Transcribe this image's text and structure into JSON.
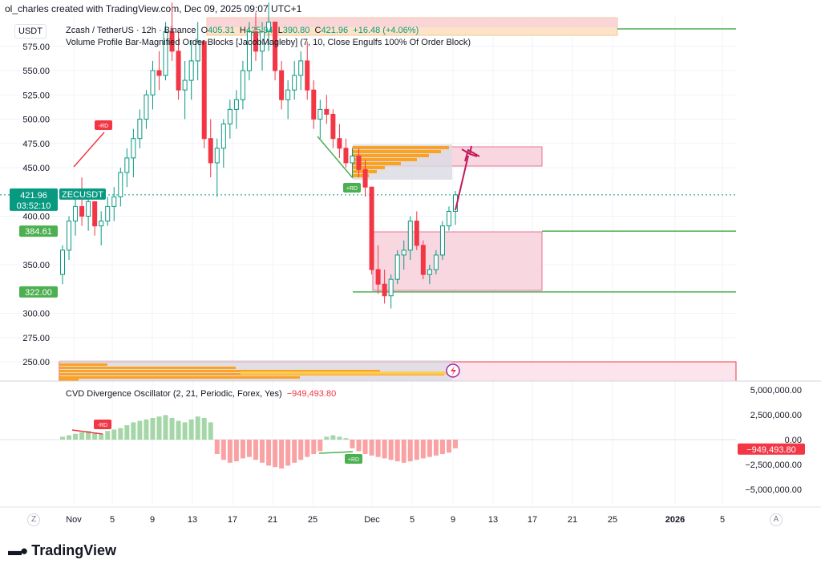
{
  "header": {
    "text": "ol_charles created with TradingView.com, Dec 09, 2025 09:07 UTC+1"
  },
  "legend_main": {
    "symbol": "Zcash / TetherUS · 12h · Binance",
    "o_label": "O",
    "o_value": "405.31",
    "h_label": "H",
    "h_value": "425.94",
    "l_label": "L",
    "l_value": "390.80",
    "c_label": "C",
    "c_value": "421.96",
    "change": "+16.48 (+4.06%)"
  },
  "legend_indicator": {
    "text": "Volume Profile Bar-Magnified Order Blocks [JacobMagleby] (7, 10, Close Engulfs 100% Of Order Block)"
  },
  "legend_oscillator": {
    "name": "CVD Divergence Oscillator (2, 21, Periodic, Forex, Yes)",
    "value": "−949,493.80"
  },
  "price_currency": "USDT",
  "footer": {
    "logo": "TradingView",
    "left_button": "Z",
    "right_button": "A"
  },
  "colors": {
    "up": "#089981",
    "down": "#f23645",
    "green_line": "#4caf50",
    "zone_fill": "#f8d7e0",
    "zone_border": "#e57399",
    "orange": "#ff9800",
    "arrow": "#c2185b"
  },
  "chart_data": {
    "type": "candlestick",
    "symbol": "ZECUSDT",
    "interval": "12h",
    "price_axis": {
      "ticks": [
        "575.00",
        "550.00",
        "525.00",
        "500.00",
        "475.00",
        "450.00",
        "400.00",
        "350.00",
        "300.00",
        "275.00",
        "250.00"
      ],
      "tick_values": [
        575,
        550,
        525,
        500,
        475,
        450,
        400,
        350,
        300,
        275,
        250
      ]
    },
    "price_labels": [
      {
        "text": "421.96",
        "sub": "03:52:10",
        "value": 421.96,
        "color": "#089981"
      },
      {
        "text": "384.61",
        "value": 384.61,
        "color": "#4caf50"
      },
      {
        "text": "322.00",
        "value": 322.0,
        "color": "#4caf50"
      }
    ],
    "symbol_label": "ZECUSDT",
    "time_axis": [
      "Nov",
      "5",
      "9",
      "13",
      "17",
      "21",
      "25",
      "Dec",
      "5",
      "9",
      "13",
      "17",
      "21",
      "25",
      "2026",
      "5"
    ],
    "horizontal_levels": [
      587,
      384.61,
      322.0
    ],
    "markers": [
      {
        "text": "-RD",
        "color": "#f23645"
      },
      {
        "text": "+RD",
        "color": "#4caf50"
      }
    ],
    "oscillator": {
      "ticks": [
        "5,000,000.00",
        "2,500,000.00",
        "0.00",
        "−2,500,000.00",
        "−5,000,000.00"
      ],
      "tick_values": [
        5000000,
        2500000,
        0,
        -2500000,
        -5000000
      ],
      "last_value_label": "−949,493.80",
      "markers": [
        {
          "text": "-RD",
          "color": "#f23645"
        },
        {
          "text": "+RD",
          "color": "#4caf50"
        }
      ]
    }
  }
}
